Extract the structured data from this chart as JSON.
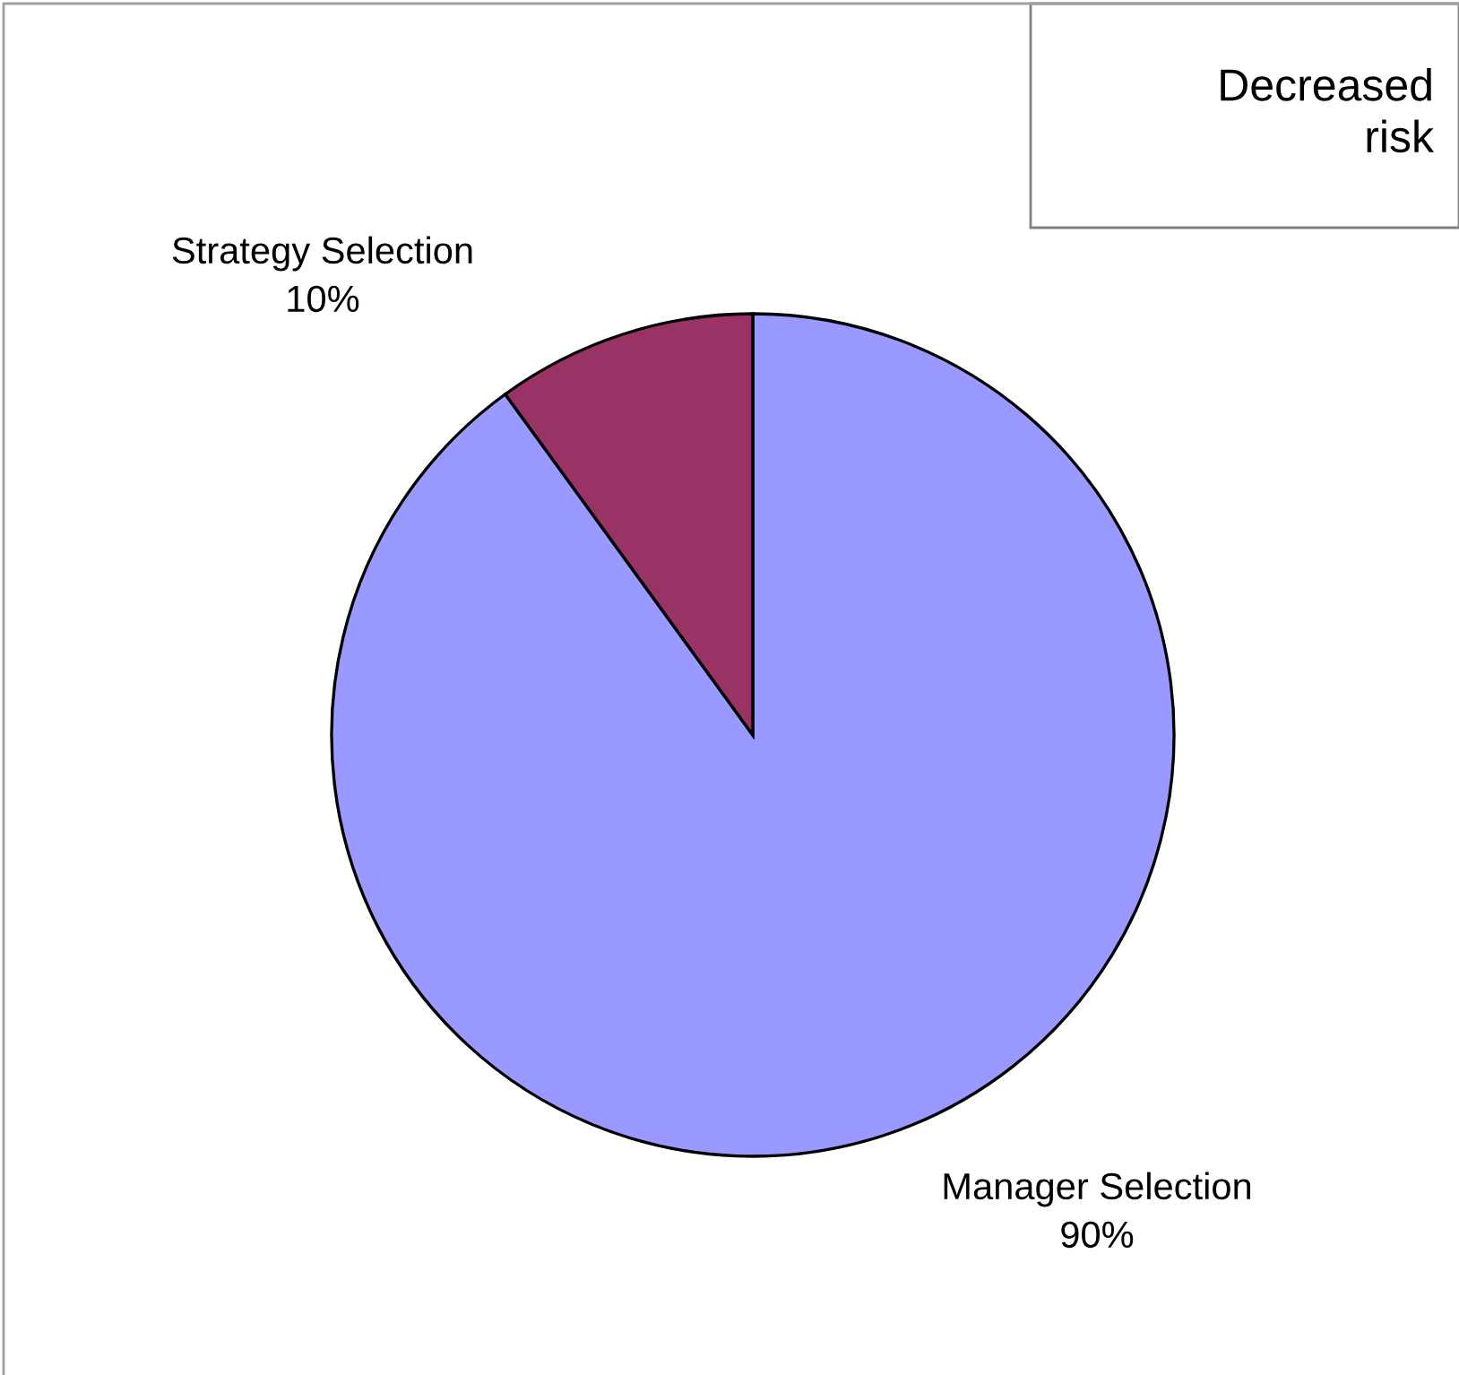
{
  "chart_data": {
    "type": "pie",
    "categories": [
      "Manager Selection",
      "Strategy Selection"
    ],
    "values": [
      90,
      10
    ],
    "colors": [
      "#9999ff",
      "#993366"
    ],
    "value_labels": [
      "90%",
      "10%"
    ],
    "annotations": [
      "Decreased\nrisk"
    ]
  }
}
